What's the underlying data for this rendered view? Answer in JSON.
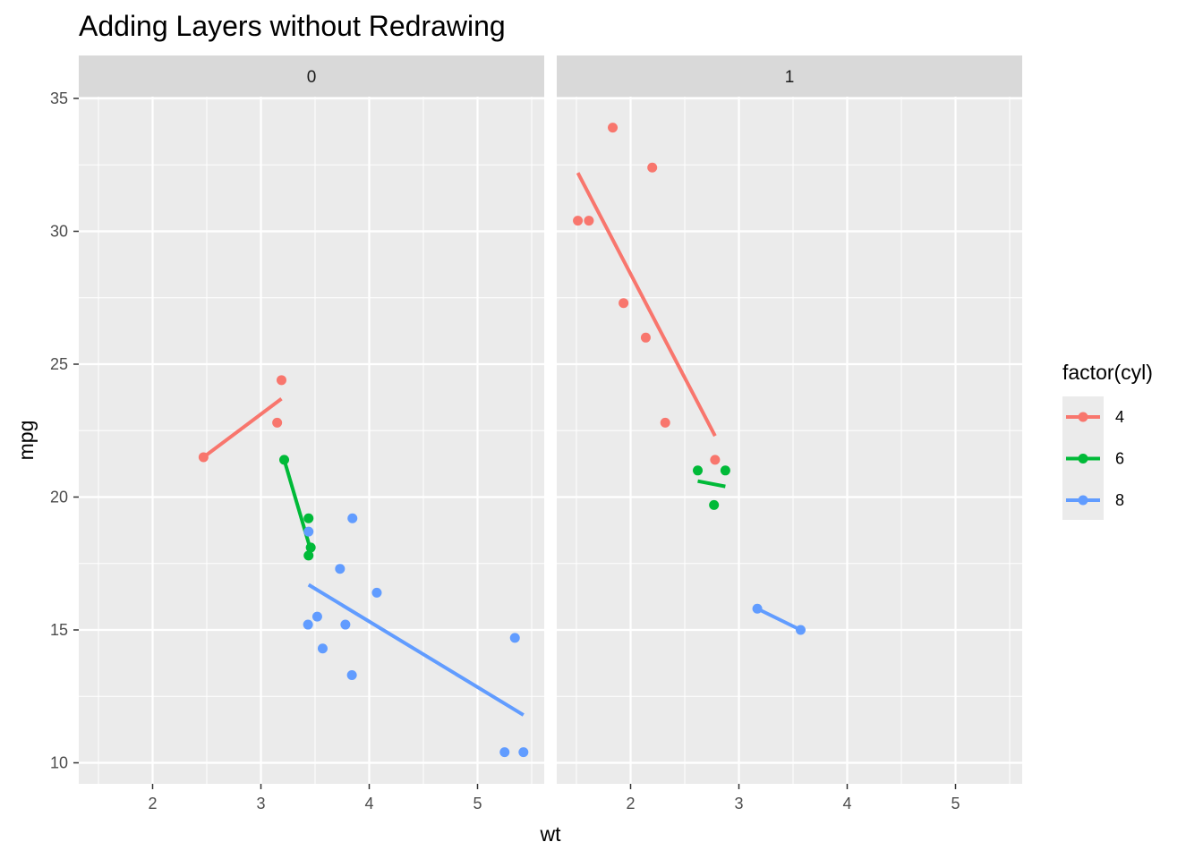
{
  "chart_data": {
    "type": "scatter",
    "title": "Adding Layers without Redrawing",
    "xlabel": "wt",
    "ylabel": "mpg",
    "xlim": [
      1.5,
      5.5
    ],
    "ylim": [
      10,
      35
    ],
    "x_ticks": [
      2,
      3,
      4,
      5
    ],
    "y_ticks": [
      10,
      15,
      20,
      25,
      30,
      35
    ],
    "grid": true,
    "legend": {
      "title": "factor(cyl)",
      "position": "right",
      "entries": [
        {
          "label": "4",
          "color": "#F8766D"
        },
        {
          "label": "6",
          "color": "#00BA38"
        },
        {
          "label": "8",
          "color": "#619CFF"
        }
      ]
    },
    "facets": [
      {
        "label": "0",
        "series": [
          {
            "name": "4",
            "color": "#F8766D",
            "points": [
              [
                2.47,
                21.5
              ],
              [
                3.15,
                22.8
              ],
              [
                3.19,
                24.4
              ]
            ],
            "fit": [
              [
                2.47,
                21.5
              ],
              [
                3.19,
                23.7
              ]
            ]
          },
          {
            "name": "6",
            "color": "#00BA38",
            "points": [
              [
                3.215,
                21.4
              ],
              [
                3.44,
                19.2
              ],
              [
                3.44,
                17.8
              ],
              [
                3.46,
                18.1
              ]
            ],
            "fit": [
              [
                3.215,
                21.4
              ],
              [
                3.46,
                18.0
              ]
            ]
          },
          {
            "name": "8",
            "color": "#619CFF",
            "points": [
              [
                3.44,
                18.7
              ],
              [
                3.57,
                14.3
              ],
              [
                3.73,
                17.3
              ],
              [
                3.78,
                15.2
              ],
              [
                3.84,
                13.3
              ],
              [
                3.845,
                19.2
              ],
              [
                4.07,
                16.4
              ],
              [
                5.25,
                10.4
              ],
              [
                5.345,
                14.7
              ],
              [
                5.424,
                10.4
              ],
              [
                3.435,
                15.2
              ],
              [
                3.52,
                15.5
              ]
            ],
            "fit": [
              [
                3.44,
                16.7
              ],
              [
                5.424,
                11.8
              ]
            ]
          }
        ]
      },
      {
        "label": "1",
        "series": [
          {
            "name": "4",
            "color": "#F8766D",
            "points": [
              [
                1.513,
                30.4
              ],
              [
                1.615,
                30.4
              ],
              [
                1.835,
                33.9
              ],
              [
                1.935,
                27.3
              ],
              [
                2.14,
                26.0
              ],
              [
                2.2,
                32.4
              ],
              [
                2.32,
                22.8
              ],
              [
                2.78,
                21.4
              ]
            ],
            "fit": [
              [
                1.513,
                32.2
              ],
              [
                2.78,
                22.3
              ]
            ]
          },
          {
            "name": "6",
            "color": "#00BA38",
            "points": [
              [
                2.62,
                21.0
              ],
              [
                2.77,
                19.7
              ],
              [
                2.875,
                21.0
              ]
            ],
            "fit": [
              [
                2.62,
                20.6
              ],
              [
                2.875,
                20.4
              ]
            ]
          },
          {
            "name": "8",
            "color": "#619CFF",
            "points": [
              [
                3.17,
                15.8
              ],
              [
                3.57,
                15.0
              ]
            ],
            "fit": [
              [
                3.17,
                15.8
              ],
              [
                3.57,
                15.0
              ]
            ]
          }
        ]
      }
    ]
  }
}
